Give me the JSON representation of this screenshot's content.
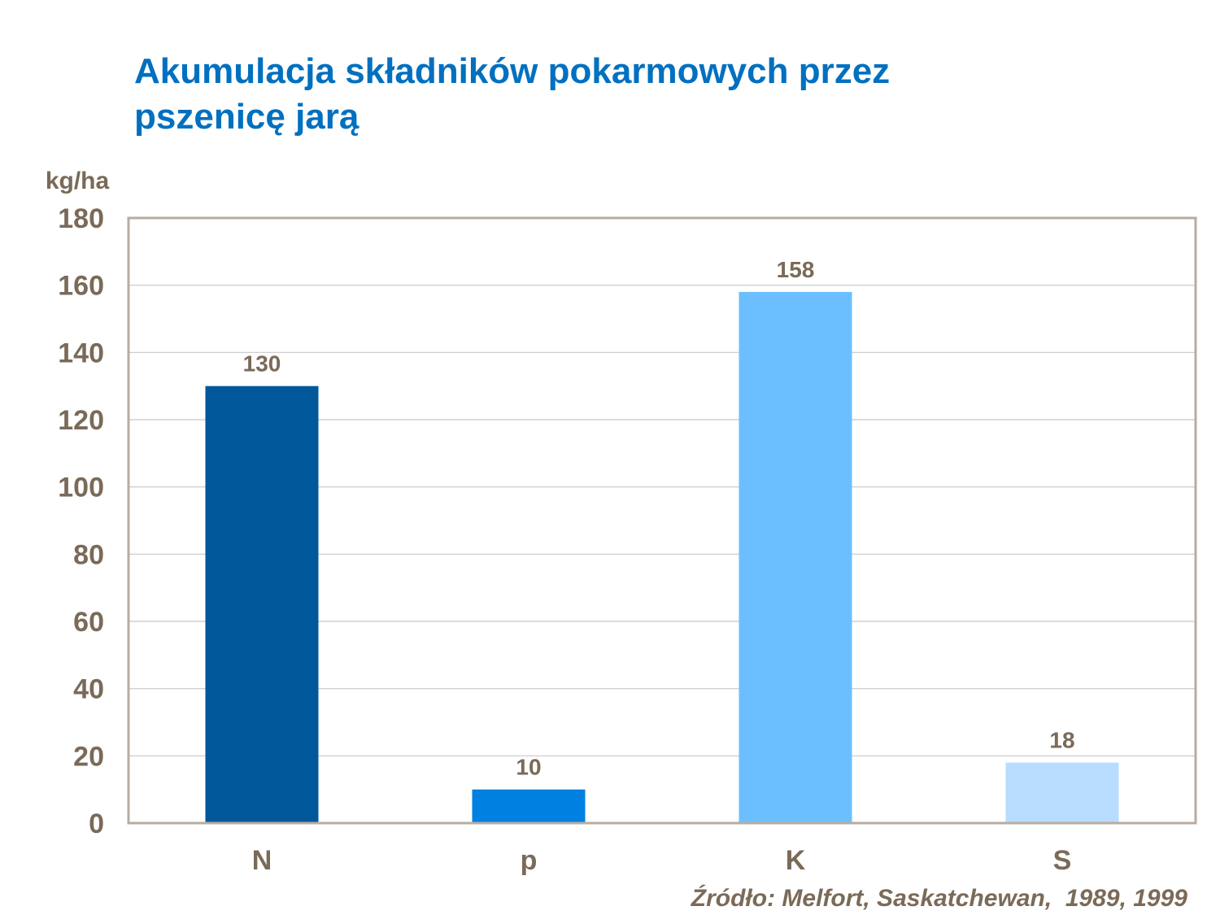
{
  "title": {
    "line1": "Akumulacja składników pokarmowych przez",
    "line2": "pszenicę jarą"
  },
  "source": "Źródło: Melfort, Saskatchewan,  1989, 1999",
  "colors": {
    "title": "#0070c0",
    "text": "#7a6a58",
    "axis": "#b8aca0",
    "grid": "#c8c8c8"
  },
  "chart_data": {
    "type": "bar",
    "title": "Akumulacja składników pokarmowych przez pszenicę jarą",
    "ylabel": "kg/ha",
    "xlabel": "",
    "categories": [
      "N",
      "p",
      "K",
      "S"
    ],
    "values": [
      130,
      10,
      158,
      18
    ],
    "data_labels": [
      "130",
      "10",
      "158",
      "18"
    ],
    "bar_colors": [
      "#00589b",
      "#0080e0",
      "#6bbfff",
      "#b8dcff"
    ],
    "ylim": [
      0,
      180
    ],
    "yticks": [
      0,
      20,
      40,
      60,
      80,
      100,
      120,
      140,
      160,
      180
    ],
    "grid": true,
    "legend": "none"
  }
}
